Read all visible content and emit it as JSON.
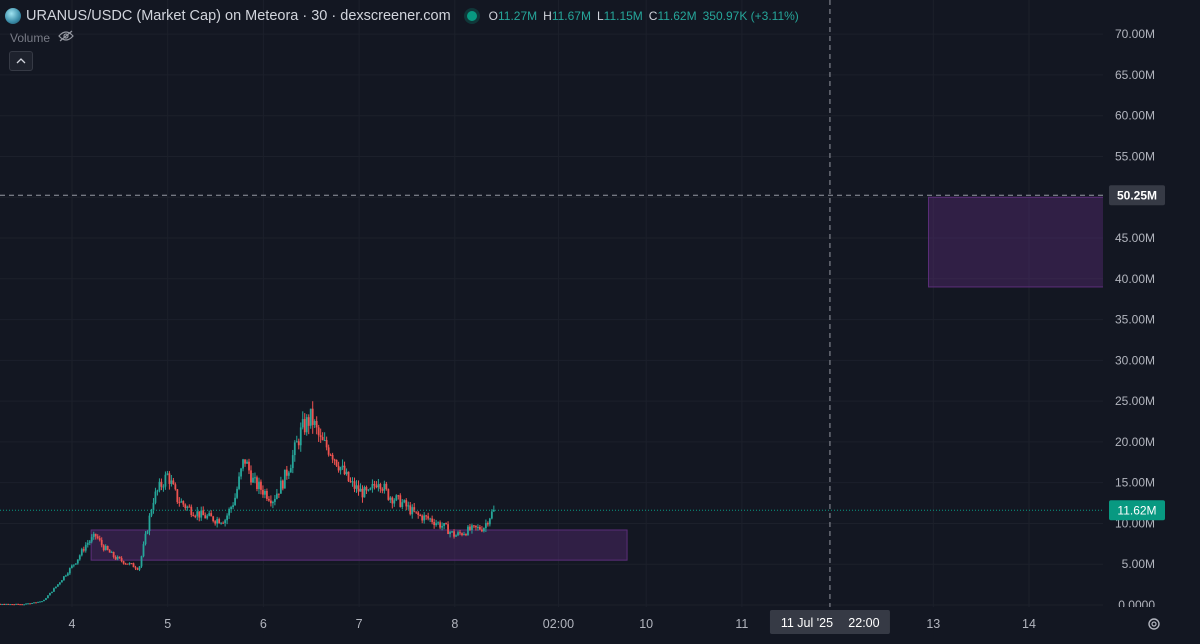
{
  "header": {
    "title": "URANUS/USDC (Market Cap) on Meteora · 30 · dexscreener.com",
    "ohlc": [
      {
        "key": "O",
        "value": "11.27M"
      },
      {
        "key": "H",
        "value": "11.67M"
      },
      {
        "key": "L",
        "value": "11.15M"
      },
      {
        "key": "C",
        "value": "11.62M"
      }
    ],
    "change": "350.97K (+3.11%)"
  },
  "volume": {
    "label": "Volume"
  },
  "collapse_icon": "chevron-up-icon",
  "colors": {
    "background": "#131722",
    "up": "#26a69a",
    "down": "#ef5350",
    "zone": "#5c2e7a",
    "price_label": "#089981"
  },
  "chart_data": {
    "type": "candlestick",
    "y_axis_ticks": [
      "70.00M",
      "65.00M",
      "60.00M",
      "55.00M",
      "50.00M",
      "45.00M",
      "40.00M",
      "35.00M",
      "30.00M",
      "25.00M",
      "20.00M",
      "15.00M",
      "10.00M",
      "5.00M",
      "0.0000"
    ],
    "y_values": [
      70,
      65,
      60,
      55,
      50,
      45,
      40,
      35,
      30,
      25,
      20,
      15,
      10,
      5,
      0
    ],
    "ylim": [
      0,
      71
    ],
    "x_axis_ticks": [
      {
        "label": "4",
        "day": 4
      },
      {
        "label": "5",
        "day": 5
      },
      {
        "label": "6",
        "day": 6
      },
      {
        "label": "7",
        "day": 7
      },
      {
        "label": "8",
        "day": 8
      },
      {
        "label": "02:00",
        "day": 9.083
      },
      {
        "label": "10",
        "day": 10
      },
      {
        "label": "11",
        "day": 11
      },
      {
        "label": "13",
        "day": 13
      },
      {
        "label": "14",
        "day": 14
      }
    ],
    "crosshair": {
      "date_label": "11 Jul '25",
      "time_label": "22:00",
      "price_label": "50.25M",
      "day": 11.92,
      "value": 50.25
    },
    "last_price": {
      "label": "11.62M",
      "value": 11.62
    },
    "zones": [
      {
        "day_from": 4.2,
        "day_to": 9.8,
        "value_from": 5.5,
        "value_to": 9.2
      },
      {
        "day_from": 12.95,
        "day_to": 14.9,
        "value_from": 39,
        "value_to": 50
      }
    ],
    "price_path": [
      [
        3.0,
        0.1
      ],
      [
        3.5,
        0.1
      ],
      [
        3.7,
        0.5
      ],
      [
        3.85,
        2.5
      ],
      [
        3.95,
        4
      ],
      [
        4.05,
        5.5
      ],
      [
        4.15,
        7.5
      ],
      [
        4.25,
        8.5
      ],
      [
        4.32,
        7.2
      ],
      [
        4.45,
        5.8
      ],
      [
        4.6,
        5.0
      ],
      [
        4.7,
        4.5
      ],
      [
        4.78,
        9
      ],
      [
        4.85,
        13
      ],
      [
        4.92,
        14.5
      ],
      [
        5.0,
        16
      ],
      [
        5.1,
        13
      ],
      [
        5.2,
        12
      ],
      [
        5.35,
        11
      ],
      [
        5.5,
        10.5
      ],
      [
        5.6,
        10.5
      ],
      [
        5.7,
        13
      ],
      [
        5.8,
        18
      ],
      [
        5.9,
        15
      ],
      [
        6.0,
        14
      ],
      [
        6.1,
        13
      ],
      [
        6.2,
        15
      ],
      [
        6.3,
        18
      ],
      [
        6.4,
        21.5
      ],
      [
        6.5,
        23
      ],
      [
        6.6,
        20
      ],
      [
        6.7,
        19
      ],
      [
        6.8,
        17
      ],
      [
        6.9,
        15
      ],
      [
        7.0,
        14
      ],
      [
        7.1,
        13.5
      ],
      [
        7.2,
        15.5
      ],
      [
        7.3,
        13.5
      ],
      [
        7.45,
        12.5
      ],
      [
        7.6,
        11
      ],
      [
        7.75,
        10.5
      ],
      [
        7.9,
        9.5
      ],
      [
        8.0,
        8.5
      ],
      [
        8.15,
        9.2
      ],
      [
        8.3,
        9.5
      ],
      [
        8.38,
        11.2
      ],
      [
        8.42,
        11.6
      ]
    ]
  }
}
